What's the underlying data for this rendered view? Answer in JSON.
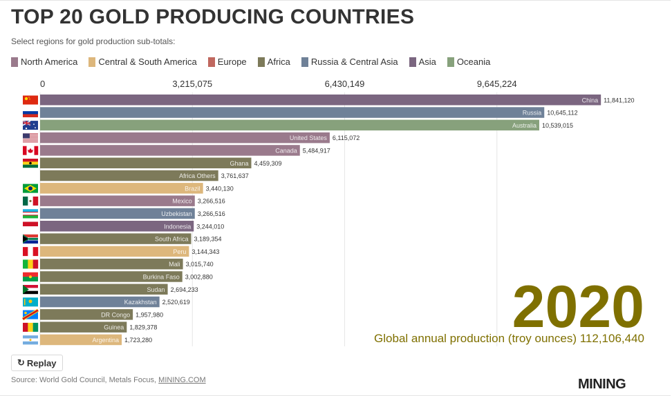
{
  "header": {
    "title": "TOP 20 GOLD PRODUCING COUNTRIES",
    "subtitle": "Select regions for gold production sub-totals:"
  },
  "legend": [
    {
      "label": "North America",
      "color": "#9a7a8c"
    },
    {
      "label": "Central & South America",
      "color": "#ddb77c"
    },
    {
      "label": "Europe",
      "color": "#c0685f"
    },
    {
      "label": "Africa",
      "color": "#7d7a5a"
    },
    {
      "label": "Russia & Central Asia",
      "color": "#6f8198"
    },
    {
      "label": "Asia",
      "color": "#7b6680"
    },
    {
      "label": "Oceania",
      "color": "#87a17c"
    }
  ],
  "overlay": {
    "year": "2020",
    "total_label": "Global annual production (troy ounces) 112,106,440"
  },
  "controls": {
    "replay_label": "Replay",
    "replay_icon": "replay-icon"
  },
  "footer": {
    "source_prefix": "Source: World Gold Council, Metals Focus, ",
    "source_link": "MINING.COM",
    "logo": "MINING"
  },
  "chart_data": {
    "type": "bar",
    "orientation": "horizontal",
    "xlim": [
      0,
      12860298
    ],
    "ticks": [
      0,
      3215075,
      6430149,
      9645224
    ],
    "tick_labels": [
      "0",
      "3,215,075",
      "6,430,149",
      "9,645,224"
    ],
    "grid": true,
    "bars": [
      {
        "name": "China",
        "value": 11841120,
        "label": "11,841,120",
        "region": "Asia",
        "flag": "china-flag"
      },
      {
        "name": "Russia",
        "value": 10645112,
        "label": "10,645,112",
        "region": "Russia & Central Asia",
        "flag": "russia-flag"
      },
      {
        "name": "Australia",
        "value": 10539015,
        "label": "10,539,015",
        "region": "Oceania",
        "flag": "australia-flag"
      },
      {
        "name": "United States",
        "value": 6115072,
        "label": "6,115,072",
        "region": "North America",
        "flag": "usa-flag"
      },
      {
        "name": "Canada",
        "value": 5484917,
        "label": "5,484,917",
        "region": "North America",
        "flag": "canada-flag"
      },
      {
        "name": "Ghana",
        "value": 4459309,
        "label": "4,459,309",
        "region": "Africa",
        "flag": "ghana-flag"
      },
      {
        "name": "Africa Others",
        "value": 3761637,
        "label": "3,761,637",
        "region": "Africa",
        "flag": ""
      },
      {
        "name": "Brazil",
        "value": 3440130,
        "label": "3,440,130",
        "region": "Central & South America",
        "flag": "brazil-flag"
      },
      {
        "name": "Mexico",
        "value": 3266516,
        "label": "3,266,516",
        "region": "North America",
        "flag": "mexico-flag"
      },
      {
        "name": "Uzbekistan",
        "value": 3266516,
        "label": "3,266,516",
        "region": "Russia & Central Asia",
        "flag": "uzbekistan-flag"
      },
      {
        "name": "Indonesia",
        "value": 3244010,
        "label": "3,244,010",
        "region": "Asia",
        "flag": "indonesia-flag"
      },
      {
        "name": "South Africa",
        "value": 3189354,
        "label": "3,189,354",
        "region": "Africa",
        "flag": "south-africa-flag"
      },
      {
        "name": "Peru",
        "value": 3144343,
        "label": "3,144,343",
        "region": "Central & South America",
        "flag": "peru-flag"
      },
      {
        "name": "Mali",
        "value": 3015740,
        "label": "3,015,740",
        "region": "Africa",
        "flag": "mali-flag"
      },
      {
        "name": "Burkina Faso",
        "value": 3002880,
        "label": "3,002,880",
        "region": "Africa",
        "flag": "burkina-faso-flag"
      },
      {
        "name": "Sudan",
        "value": 2694233,
        "label": "2,694,233",
        "region": "Africa",
        "flag": "sudan-flag"
      },
      {
        "name": "Kazakhstan",
        "value": 2520619,
        "label": "2,520,619",
        "region": "Russia & Central Asia",
        "flag": "kazakhstan-flag"
      },
      {
        "name": "DR Congo",
        "value": 1957980,
        "label": "1,957,980",
        "region": "Africa",
        "flag": "dr-congo-flag"
      },
      {
        "name": "Guinea",
        "value": 1829378,
        "label": "1,829,378",
        "region": "Africa",
        "flag": "guinea-flag"
      },
      {
        "name": "Argentina",
        "value": 1723280,
        "label": "1,723,280",
        "region": "Central & South America",
        "flag": "argentina-flag"
      }
    ]
  }
}
